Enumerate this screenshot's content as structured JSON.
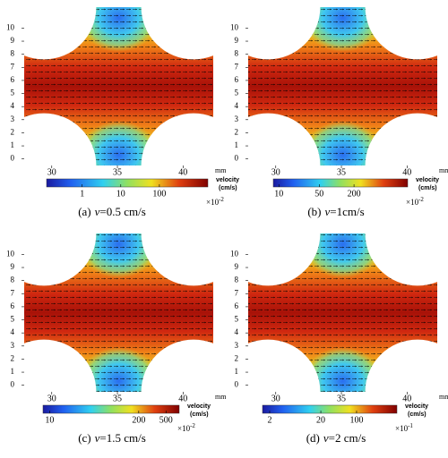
{
  "panels": [
    {
      "caption": {
        "label": "(a)",
        "variable": "v",
        "value": "=0.5 cm/s"
      },
      "x_unit": "mm",
      "xlim": [
        27.9,
        42.3
      ],
      "xticks": [
        30,
        35,
        40
      ],
      "ylim": [
        -0.5,
        11.6
      ],
      "yticks": [
        0,
        1,
        2,
        3,
        4,
        5,
        6,
        7,
        8,
        9,
        10
      ],
      "colorbar": {
        "title": "velocity",
        "unit": "(cm/s)",
        "scale": "log",
        "clim": [
          0.12,
          1800
        ],
        "ticks": [
          1,
          10,
          100
        ],
        "multiplier": {
          "base": "×10",
          "exponent": "-2"
        }
      }
    },
    {
      "caption": {
        "label": "(b)",
        "variable": "v",
        "value": "=1cm/s"
      },
      "x_unit": "mm",
      "xlim": [
        27.9,
        42.3
      ],
      "xticks": [
        30,
        35,
        40
      ],
      "ylim": [
        -0.5,
        11.6
      ],
      "yticks": [
        0,
        1,
        2,
        3,
        4,
        5,
        6,
        7,
        8,
        9,
        10
      ],
      "colorbar": {
        "title": "velocity",
        "unit": "(cm/s)",
        "scale": "log",
        "clim": [
          8,
          1700
        ],
        "ticks": [
          10,
          50,
          200
        ],
        "multiplier": {
          "base": "×10",
          "exponent": "-2"
        }
      }
    },
    {
      "caption": {
        "label": "(c)",
        "variable": "v",
        "value": "=1.5 cm/s"
      },
      "x_unit": "mm",
      "xlim": [
        27.9,
        42.3
      ],
      "xticks": [
        30,
        35,
        40
      ],
      "ylim": [
        -0.5,
        11.6
      ],
      "yticks": [
        0,
        1,
        2,
        3,
        4,
        5,
        6,
        7,
        8,
        9,
        10
      ],
      "colorbar": {
        "title": "velocity",
        "unit": "(cm/s)",
        "scale": "log",
        "clim": [
          8,
          780
        ],
        "ticks": [
          10,
          200,
          500
        ],
        "multiplier": {
          "base": "×10",
          "exponent": "-2"
        }
      }
    },
    {
      "caption": {
        "label": "(d)",
        "variable": "v",
        "value": "=2 cm/s"
      },
      "x_unit": "mm",
      "xlim": [
        27.9,
        42.3
      ],
      "xticks": [
        30,
        35,
        40
      ],
      "ylim": [
        -0.5,
        11.6
      ],
      "yticks": [
        0,
        1,
        2,
        3,
        4,
        5,
        6,
        7,
        8,
        9,
        10
      ],
      "colorbar": {
        "title": "velocity",
        "unit": "(cm/s)",
        "scale": "log",
        "clim": [
          1.45,
          615
        ],
        "ticks": [
          2,
          20,
          100
        ],
        "multiplier": {
          "base": "×10",
          "exponent": "-1"
        }
      }
    }
  ]
}
